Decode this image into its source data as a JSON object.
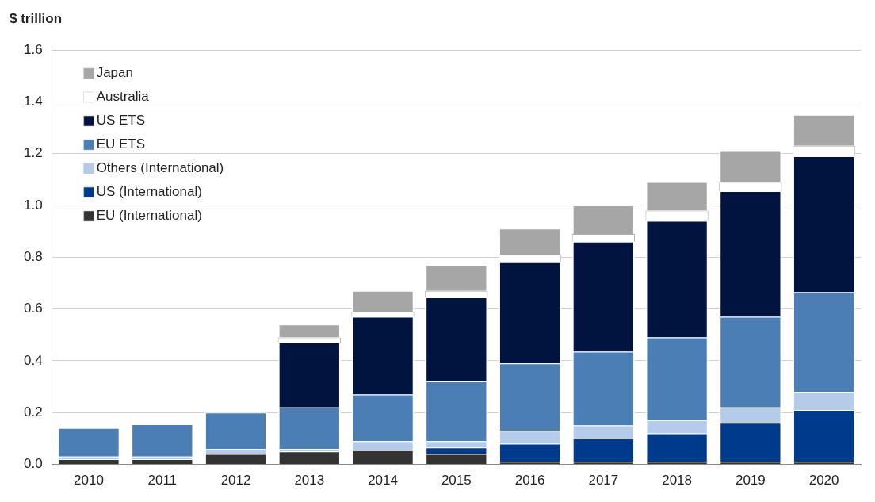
{
  "chart_data": {
    "type": "bar",
    "stacked": true,
    "ylabel": "$ trillion",
    "categories": [
      "2010",
      "2011",
      "2012",
      "2013",
      "2014",
      "2015",
      "2016",
      "2017",
      "2018",
      "2019",
      "2020"
    ],
    "series": [
      {
        "name": "EU (International)",
        "color": "#333333",
        "values": [
          0.02,
          0.02,
          0.04,
          0.05,
          0.055,
          0.04,
          0.01,
          0.01,
          0.01,
          0.01,
          0.01
        ]
      },
      {
        "name": "US (International)",
        "color": "#003a8c",
        "values": [
          0,
          0,
          0,
          0,
          0,
          0.025,
          0.07,
          0.09,
          0.11,
          0.15,
          0.2
        ]
      },
      {
        "name": "Others (International)",
        "color": "#b4cbe9",
        "values": [
          0.01,
          0.01,
          0.02,
          0.01,
          0.035,
          0.025,
          0.05,
          0.05,
          0.05,
          0.06,
          0.07
        ]
      },
      {
        "name": "EU ETS",
        "color": "#4a7eb5",
        "values": [
          0.11,
          0.125,
          0.14,
          0.16,
          0.18,
          0.23,
          0.26,
          0.285,
          0.32,
          0.35,
          0.385
        ]
      },
      {
        "name": "US ETS",
        "color": "#00143f",
        "values": [
          0,
          0,
          0,
          0.25,
          0.3,
          0.325,
          0.39,
          0.425,
          0.45,
          0.485,
          0.525
        ]
      },
      {
        "name": "Australia",
        "color": "#ffffff",
        "values": [
          0,
          0,
          0,
          0.02,
          0.02,
          0.025,
          0.03,
          0.03,
          0.04,
          0.035,
          0.04
        ]
      },
      {
        "name": "Japan",
        "color": "#a6a6a6",
        "values": [
          0,
          0,
          0,
          0.05,
          0.08,
          0.1,
          0.1,
          0.11,
          0.11,
          0.12,
          0.12
        ]
      }
    ],
    "ylim": [
      0,
      1.6
    ],
    "yticks": [
      {
        "value": 0,
        "label": "0.0"
      },
      {
        "value": 0.2,
        "label": "0.2"
      },
      {
        "value": 0.4,
        "label": "0.4"
      },
      {
        "value": 0.6,
        "label": "0.6"
      },
      {
        "value": 0.8,
        "label": "0.8"
      },
      {
        "value": 1,
        "label": "1.0"
      },
      {
        "value": 1.2,
        "label": "1.2"
      },
      {
        "value": 1.4,
        "label": "1.4"
      },
      {
        "value": 1.6,
        "label": "1.6"
      }
    ],
    "grid": "y",
    "legend": "top left"
  }
}
